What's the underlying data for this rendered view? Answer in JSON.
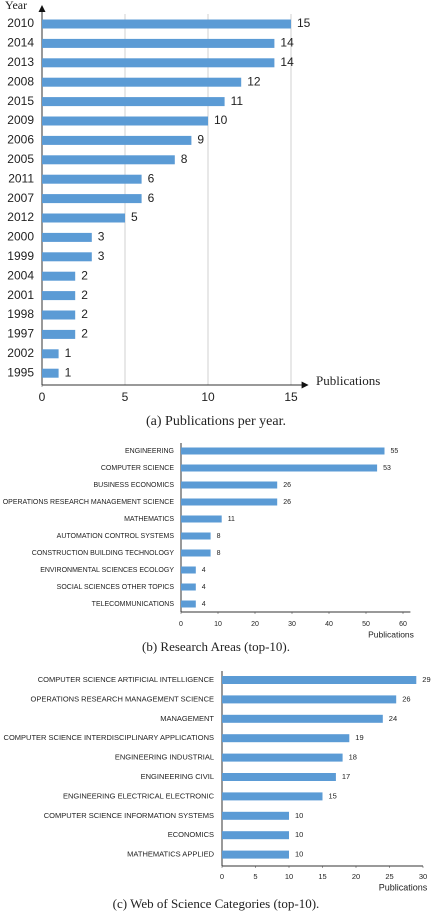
{
  "chart_data": [
    {
      "type": "bar",
      "orientation": "horizontal",
      "caption": "(a) Publications per year.",
      "x_label": "Publications",
      "y_label": "Year",
      "categories": [
        "2010",
        "2014",
        "2013",
        "2008",
        "2015",
        "2009",
        "2006",
        "2005",
        "2011",
        "2007",
        "2012",
        "2000",
        "1999",
        "2004",
        "2001",
        "1998",
        "1997",
        "2002",
        "1995"
      ],
      "values": [
        15,
        14,
        14,
        12,
        11,
        10,
        9,
        8,
        6,
        6,
        5,
        3,
        3,
        2,
        2,
        2,
        2,
        1,
        1
      ],
      "color": "#5b9bd5",
      "xlim": [
        0,
        16
      ],
      "xticks": [
        0,
        5,
        10,
        15
      ],
      "grid": true
    },
    {
      "type": "bar",
      "orientation": "horizontal",
      "caption": "(b) Research Areas (top-10).",
      "x_label": "Publications",
      "categories": [
        "ENGINEERING",
        "COMPUTER SCIENCE",
        "BUSINESS ECONOMICS",
        "OPERATIONS RESEARCH MANAGEMENT SCIENCE",
        "MATHEMATICS",
        "AUTOMATION CONTROL SYSTEMS",
        "CONSTRUCTION BUILDING TECHNOLOGY",
        "ENVIRONMENTAL SCIENCES ECOLOGY",
        "SOCIAL SCIENCES OTHER TOPICS",
        "TELECOMMUNICATIONS"
      ],
      "values": [
        55,
        53,
        26,
        26,
        11,
        8,
        8,
        4,
        4,
        4
      ],
      "color": "#5b9bd5",
      "xlim": [
        0,
        62
      ],
      "xticks": [
        0,
        10,
        20,
        30,
        40,
        50,
        60
      ],
      "grid": false
    },
    {
      "type": "bar",
      "orientation": "horizontal",
      "caption": "(c) Web of Science Categories (top-10).",
      "x_label": "Publications",
      "categories": [
        "COMPUTER SCIENCE ARTIFICIAL INTELLIGENCE",
        "OPERATIONS RESEARCH MANAGEMENT SCIENCE",
        "MANAGEMENT",
        "COMPUTER SCIENCE INTERDISCIPLINARY APPLICATIONS",
        "ENGINEERING INDUSTRIAL",
        "ENGINEERING CIVIL",
        "ENGINEERING ELECTRICAL ELECTRONIC",
        "COMPUTER SCIENCE INFORMATION SYSTEMS",
        "ECONOMICS",
        "MATHEMATICS APPLIED"
      ],
      "values": [
        29,
        26,
        24,
        19,
        18,
        17,
        15,
        10,
        10,
        10
      ],
      "color": "#5b9bd5",
      "xlim": [
        0,
        30
      ],
      "xticks": [
        0,
        5,
        10,
        15,
        20,
        25,
        30
      ],
      "grid": false
    }
  ]
}
